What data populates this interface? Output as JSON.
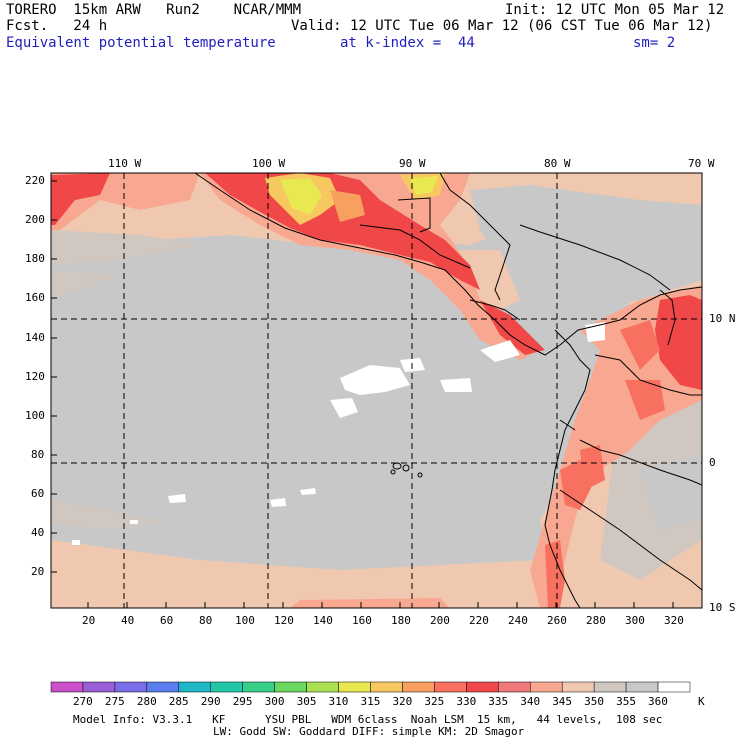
{
  "header": {
    "line1_left": "TORERO  15km ARW   Run2    NCAR/MMM",
    "line1_right": "Init: 12 UTC Mon 05 Mar 12",
    "line2_left": "Fcst.   24 h",
    "line2_right": "Valid: 12 UTC Tue 06 Mar 12 (06 CST Tue 06 Mar 12)",
    "field_name": "Equivalent potential temperature",
    "level": "at k-index =  44",
    "smoothing": "sm= 2"
  },
  "map": {
    "top_lon_labels": [
      "110 W",
      "100 W",
      "90 W",
      "80 W",
      "70 W"
    ],
    "right_lat_labels": [
      "10 N",
      "0",
      "10 S"
    ],
    "left_ticks": [
      "220",
      "200",
      "180",
      "160",
      "140",
      "120",
      "100",
      "80",
      "60",
      "40",
      "20"
    ],
    "bottom_ticks": [
      "20",
      "40",
      "60",
      "80",
      "100",
      "120",
      "140",
      "160",
      "180",
      "200",
      "220",
      "240",
      "260",
      "280",
      "300",
      "320"
    ]
  },
  "colorbar": {
    "labels": [
      "270",
      "275",
      "280",
      "285",
      "290",
      "295",
      "300",
      "305",
      "310",
      "315",
      "320",
      "325",
      "330",
      "335",
      "340",
      "345",
      "350",
      "355",
      "360"
    ],
    "unit": "K",
    "colors": [
      "#cc4fcc",
      "#9a5fd8",
      "#7a6ee8",
      "#5a7ef0",
      "#20b8c8",
      "#20c8a8",
      "#38d088",
      "#6ad860",
      "#a8e050",
      "#e8e850",
      "#f8c860",
      "#f8a060",
      "#f87060",
      "#f04848",
      "#f0787a",
      "#f8a890",
      "#f0c8b0",
      "#d0c8c0",
      "#c8c8c8",
      "#ffffff"
    ]
  },
  "footer": {
    "line1": "Model Info: V3.3.1   KF      YSU PBL   WDM 6class  Noah LSM  15 km,   44 levels,  108 sec",
    "line2": "LW: Godd SW: Goddard DIFF: simple KM: 2D Smagor"
  }
}
